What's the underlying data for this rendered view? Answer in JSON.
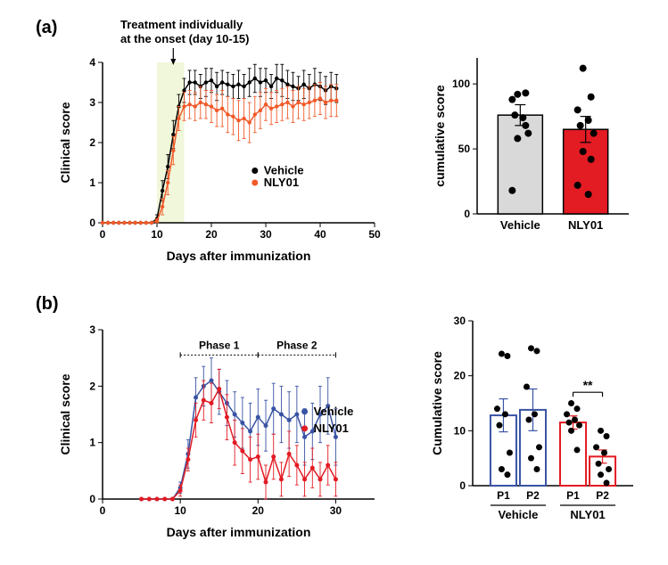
{
  "panel_a": {
    "label": "(a)",
    "annotation_lines": [
      "Treatment individually",
      "at the onset (day 10-15)"
    ],
    "line_chart": {
      "type": "line",
      "x_label": "Days after immunization",
      "y_label": "Clinical score",
      "xlim": [
        0,
        50
      ],
      "ylim": [
        0,
        4
      ],
      "xticks": [
        0,
        10,
        20,
        30,
        40,
        50
      ],
      "yticks": [
        0,
        1,
        2,
        3,
        4
      ],
      "shade_x": [
        10,
        15
      ],
      "shade_color": "#f0f7da",
      "series": [
        {
          "name": "Vehicle",
          "color": "#000000",
          "x": [
            0,
            1,
            2,
            3,
            4,
            5,
            6,
            7,
            8,
            9,
            10,
            11,
            12,
            13,
            14,
            15,
            16,
            17,
            18,
            19,
            20,
            21,
            22,
            23,
            24,
            25,
            26,
            27,
            28,
            29,
            30,
            31,
            32,
            33,
            34,
            35,
            36,
            37,
            38,
            39,
            40,
            41,
            42,
            43
          ],
          "y": [
            0,
            0,
            0,
            0,
            0,
            0,
            0,
            0,
            0,
            0,
            0.1,
            0.8,
            1.4,
            2.2,
            2.9,
            3.3,
            3.5,
            3.5,
            3.4,
            3.5,
            3.55,
            3.4,
            3.5,
            3.45,
            3.4,
            3.45,
            3.4,
            3.5,
            3.6,
            3.5,
            3.55,
            3.4,
            3.6,
            3.55,
            3.45,
            3.4,
            3.35,
            3.45,
            3.35,
            3.45,
            3.4,
            3.3,
            3.4,
            3.35
          ],
          "err": [
            0,
            0,
            0,
            0,
            0,
            0,
            0,
            0,
            0,
            0,
            0.1,
            0.25,
            0.3,
            0.35,
            0.3,
            0.3,
            0.3,
            0.3,
            0.3,
            0.35,
            0.3,
            0.35,
            0.3,
            0.3,
            0.3,
            0.35,
            0.3,
            0.35,
            0.35,
            0.35,
            0.3,
            0.3,
            0.35,
            0.4,
            0.35,
            0.35,
            0.3,
            0.35,
            0.35,
            0.4,
            0.35,
            0.35,
            0.35,
            0.35
          ]
        },
        {
          "name": "NLY01",
          "color": "#f15a29",
          "x": [
            0,
            1,
            2,
            3,
            4,
            5,
            6,
            7,
            8,
            9,
            10,
            11,
            12,
            13,
            14,
            15,
            16,
            17,
            18,
            19,
            20,
            21,
            22,
            23,
            24,
            25,
            26,
            27,
            28,
            29,
            30,
            31,
            32,
            33,
            34,
            35,
            36,
            37,
            38,
            39,
            40,
            41,
            42,
            43
          ],
          "y": [
            0,
            0,
            0,
            0,
            0,
            0,
            0,
            0,
            0,
            0,
            0.05,
            0.4,
            1.0,
            1.8,
            2.6,
            2.9,
            2.95,
            2.9,
            3.0,
            2.95,
            2.9,
            2.8,
            2.85,
            2.7,
            2.65,
            2.55,
            2.6,
            2.5,
            2.7,
            2.8,
            2.95,
            2.85,
            2.9,
            2.95,
            3.0,
            2.9,
            3.0,
            2.95,
            3.0,
            3.05,
            3.1,
            3.0,
            3.05,
            3.05
          ],
          "err": [
            0,
            0,
            0,
            0,
            0,
            0,
            0,
            0,
            0,
            0,
            0.05,
            0.2,
            0.3,
            0.35,
            0.3,
            0.35,
            0.35,
            0.35,
            0.4,
            0.35,
            0.4,
            0.4,
            0.45,
            0.45,
            0.45,
            0.5,
            0.5,
            0.5,
            0.45,
            0.45,
            0.4,
            0.4,
            0.4,
            0.4,
            0.4,
            0.4,
            0.4,
            0.4,
            0.4,
            0.4,
            0.4,
            0.4,
            0.4,
            0.4
          ]
        }
      ]
    },
    "bar_chart": {
      "type": "bar_scatter",
      "y_label": "cumulative score",
      "ylim": [
        0,
        120
      ],
      "yticks": [
        0,
        50,
        100
      ],
      "categories": [
        "Vehicle",
        "NLY01"
      ],
      "bars": [
        {
          "fill": "#d9d9d9",
          "border": "#000000",
          "mean": 76,
          "err": 8,
          "points": [
            92,
            93,
            88,
            74,
            76,
            62,
            58,
            68,
            18
          ]
        },
        {
          "fill": "#e31b23",
          "border": "#000000",
          "mean": 65,
          "err": 10,
          "points": [
            112,
            90,
            80,
            72,
            68,
            62,
            48,
            42,
            22,
            15
          ]
        }
      ]
    }
  },
  "panel_b": {
    "label": "(b)",
    "line_chart": {
      "type": "line",
      "x_label": "Days after immunization",
      "y_label": "Clinical score",
      "xlim": [
        0,
        35
      ],
      "ylim": [
        0,
        3
      ],
      "xticks": [
        0,
        10,
        20,
        30
      ],
      "yticks": [
        0,
        1,
        2,
        3
      ],
      "phase_labels": [
        "Phase 1",
        "Phase 2"
      ],
      "phase_x": [
        [
          10,
          20
        ],
        [
          20,
          30
        ]
      ],
      "series": [
        {
          "name": "Vehicle",
          "color": "#3953a4",
          "x": [
            5,
            6,
            7,
            8,
            9,
            10,
            11,
            12,
            13,
            14,
            15,
            16,
            17,
            18,
            19,
            20,
            21,
            22,
            23,
            24,
            25,
            26,
            27,
            28,
            29,
            30
          ],
          "y": [
            0,
            0,
            0,
            0,
            0,
            0.2,
            0.8,
            1.8,
            2.0,
            2.1,
            1.9,
            1.7,
            1.5,
            1.35,
            1.2,
            1.45,
            1.3,
            1.6,
            1.5,
            1.4,
            1.5,
            1.1,
            1.2,
            1.5,
            1.65,
            1.1
          ],
          "err": [
            0,
            0,
            0,
            0,
            0,
            0.1,
            0.25,
            0.35,
            0.35,
            0.4,
            0.4,
            0.4,
            0.4,
            0.45,
            0.5,
            0.5,
            0.45,
            0.45,
            0.5,
            0.5,
            0.5,
            0.5,
            0.5,
            0.5,
            0.5,
            0.5
          ]
        },
        {
          "name": "NLY01",
          "color": "#e31b23",
          "x": [
            5,
            6,
            7,
            8,
            9,
            10,
            11,
            12,
            13,
            14,
            15,
            16,
            17,
            18,
            19,
            20,
            21,
            22,
            23,
            24,
            25,
            26,
            27,
            28,
            29,
            30
          ],
          "y": [
            0,
            0,
            0,
            0,
            0,
            0.15,
            0.7,
            1.4,
            1.75,
            1.7,
            1.95,
            1.45,
            1.0,
            0.85,
            0.7,
            0.75,
            0.3,
            0.75,
            0.35,
            0.8,
            0.6,
            0.35,
            0.55,
            0.35,
            0.6,
            0.35
          ],
          "err": [
            0,
            0,
            0,
            0,
            0,
            0.1,
            0.2,
            0.3,
            0.35,
            0.35,
            0.35,
            0.4,
            0.4,
            0.4,
            0.4,
            0.4,
            0.3,
            0.4,
            0.3,
            0.4,
            0.35,
            0.3,
            0.35,
            0.3,
            0.35,
            0.3
          ]
        }
      ]
    },
    "bar_chart": {
      "type": "bar_scatter",
      "y_label": "Cumulative score",
      "ylim": [
        0,
        30
      ],
      "yticks": [
        0,
        10,
        20,
        30
      ],
      "categories": [
        "P1",
        "P2",
        "P1",
        "P2"
      ],
      "group_labels": [
        "Vehicle",
        "NLY01"
      ],
      "sig_label": "**",
      "bars": [
        {
          "fill": "#ffffff",
          "border": "#3953a4",
          "mean": 12.8,
          "err": 3.0,
          "points": [
            24,
            23.6,
            14,
            13,
            11,
            6,
            3,
            2
          ]
        },
        {
          "fill": "#ffffff",
          "border": "#3953a4",
          "mean": 13.8,
          "err": 3.8,
          "points": [
            25,
            24.5,
            18,
            13,
            12,
            7,
            5,
            3
          ]
        },
        {
          "fill": "#ffffff",
          "border": "#e31b23",
          "mean": 11.5,
          "err": 1.2,
          "points": [
            15,
            14,
            13,
            12,
            11.5,
            11,
            10,
            6.5
          ]
        },
        {
          "fill": "#ffffff",
          "border": "#e31b23",
          "mean": 5.3,
          "err": 1.2,
          "points": [
            10,
            9,
            7,
            6,
            4,
            3,
            2,
            0.5
          ]
        }
      ]
    }
  },
  "colors": {
    "axis": "#000000",
    "text": "#000000",
    "point_fill": "#000000"
  }
}
